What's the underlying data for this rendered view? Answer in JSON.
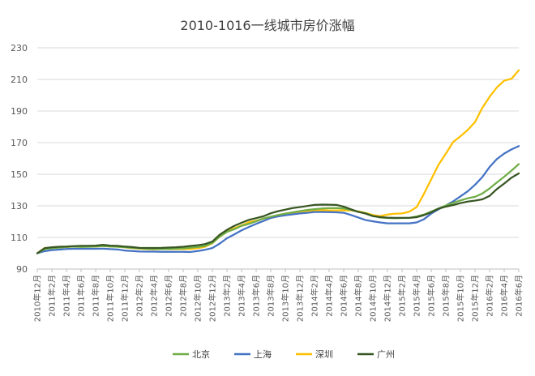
{
  "chart_data": {
    "type": "line",
    "title": "2010-1016一线城市房价涨幅",
    "ylim": [
      90,
      230
    ],
    "yticks": [
      90,
      110,
      130,
      150,
      170,
      190,
      210,
      230
    ],
    "grid": true,
    "legend_position": "bottom",
    "x": [
      "2010年12月",
      "2011年1月",
      "2011年2月",
      "2011年3月",
      "2011年4月",
      "2011年5月",
      "2011年6月",
      "2011年7月",
      "2011年8月",
      "2011年9月",
      "2011年10月",
      "2011年11月",
      "2011年12月",
      "2012年1月",
      "2012年2月",
      "2012年3月",
      "2012年4月",
      "2012年5月",
      "2012年6月",
      "2012年7月",
      "2012年8月",
      "2012年9月",
      "2012年10月",
      "2012年11月",
      "2012年12月",
      "2013年1月",
      "2013年2月",
      "2013年3月",
      "2013年4月",
      "2013年5月",
      "2013年6月",
      "2013年7月",
      "2013年8月",
      "2013年9月",
      "2013年10月",
      "2013年11月",
      "2013年12月",
      "2014年1月",
      "2014年2月",
      "2014年3月",
      "2014年4月",
      "2014年5月",
      "2014年6月",
      "2014年7月",
      "2014年8月",
      "2014年9月",
      "2014年10月",
      "2014年11月",
      "2014年12月",
      "2015年1月",
      "2015年2月",
      "2015年3月",
      "2015年4月",
      "2015年5月",
      "2015年6月",
      "2015年7月",
      "2015年8月",
      "2015年9月",
      "2015年10月",
      "2015年11月",
      "2015年12月",
      "2016年1月",
      "2016年2月",
      "2016年3月",
      "2016年4月",
      "2016年5月",
      "2016年6月"
    ],
    "x_tick_labels": [
      "2010年12月",
      "2011年2月",
      "2011年4月",
      "2011年6月",
      "2011年8月",
      "2011年10月",
      "2011年12月",
      "2012年2月",
      "2012年4月",
      "2012年6月",
      "2012年8月",
      "2012年10月",
      "2012年12月",
      "2013年2月",
      "2013年4月",
      "2013年6月",
      "2013年8月",
      "2013年10月",
      "2013年12月",
      "2014年2月",
      "2014年4月",
      "2014年6月",
      "2014年8月",
      "2014年10月",
      "2014年12月",
      "2015年2月",
      "2015年4月",
      "2015年6月",
      "2015年8月",
      "2015年10月",
      "2015年12月",
      "2016年2月",
      "2016年4月",
      "2016年6月"
    ],
    "series": [
      {
        "name": "北京",
        "color": "#70ad47",
        "values": [
          100,
          102.6,
          103.2,
          103.5,
          104,
          104.2,
          104,
          104.1,
          104.3,
          104.5,
          104.2,
          104.1,
          103.8,
          103.4,
          103.1,
          102.8,
          102.7,
          102.6,
          102.7,
          102.9,
          103.1,
          103.5,
          104,
          104.6,
          106.5,
          110.5,
          113.5,
          115.2,
          117.3,
          118.6,
          120.2,
          122,
          123.1,
          124.2,
          125.1,
          125.9,
          126.7,
          127.4,
          127.9,
          128.3,
          128.5,
          128.6,
          128.3,
          127.4,
          126.2,
          125.3,
          123.6,
          122.6,
          122.3,
          122.2,
          122.3,
          122.4,
          123.3,
          124.5,
          126.4,
          128.3,
          130.2,
          131.8,
          133.4,
          134.8,
          135.7,
          137.8,
          141,
          144.8,
          148.4,
          152.3,
          156.4
        ]
      },
      {
        "name": "上海",
        "color": "#4472c4",
        "values": [
          100,
          101.3,
          102,
          102.3,
          102.7,
          102.8,
          102.8,
          102.8,
          102.8,
          102.9,
          102.6,
          102.4,
          101.7,
          101.4,
          101.1,
          101,
          101,
          100.9,
          100.9,
          100.9,
          100.9,
          100.8,
          101.4,
          102.2,
          103.3,
          106.1,
          109.5,
          111.9,
          114.5,
          116.6,
          118.6,
          120.4,
          122.3,
          123.3,
          124,
          124.6,
          125.2,
          125.6,
          126.1,
          126.1,
          126,
          125.9,
          125.6,
          124.2,
          122.6,
          121,
          120.2,
          119.5,
          118.9,
          118.9,
          118.9,
          118.9,
          119.5,
          121.5,
          125.1,
          127.8,
          130.2,
          132.8,
          136,
          139.2,
          143.3,
          148.2,
          154.6,
          159.6,
          163.1,
          165.7,
          167.8
        ]
      },
      {
        "name": "深圳",
        "color": "#ffc000",
        "values": [
          100,
          103.3,
          103.6,
          103.8,
          104,
          104.2,
          104.2,
          104.2,
          104.2,
          104.6,
          104.3,
          104.1,
          103.7,
          103.2,
          102.9,
          102.6,
          102.5,
          102.6,
          102.6,
          102.6,
          102.6,
          102.7,
          103.2,
          104.1,
          106.3,
          110.5,
          113.7,
          115.8,
          117.6,
          119.6,
          120.6,
          121.9,
          123.1,
          124.1,
          125.1,
          125.6,
          126.3,
          126.8,
          126.8,
          127.3,
          127.1,
          127.1,
          127.2,
          127.1,
          126.5,
          125.5,
          124.2,
          123.5,
          124.5,
          125,
          125.2,
          126.3,
          129.2,
          137.6,
          146.8,
          156,
          163,
          170.4,
          174,
          178,
          183,
          192,
          199,
          205,
          209.2,
          210.4,
          215.8
        ]
      },
      {
        "name": "广州",
        "color": "#375623",
        "values": [
          100,
          103.2,
          103.8,
          104.1,
          104.2,
          104.5,
          104.7,
          104.7,
          104.8,
          105.3,
          104.8,
          104.7,
          104.2,
          103.9,
          103.4,
          103.3,
          103.3,
          103.4,
          103.6,
          103.8,
          104.1,
          104.6,
          105.1,
          105.8,
          107.4,
          111.7,
          114.8,
          117.3,
          119.3,
          121.1,
          122.2,
          123.4,
          125.3,
          126.6,
          127.6,
          128.6,
          129.2,
          129.9,
          130.6,
          130.8,
          130.7,
          130.6,
          129.5,
          127.8,
          126.2,
          125.1,
          123.5,
          122.9,
          122.5,
          122.4,
          122.4,
          122.4,
          122.8,
          124.1,
          125.9,
          128.2,
          129.5,
          130.5,
          131.7,
          132.7,
          133.3,
          134.1,
          136.3,
          140.6,
          144.1,
          147.8,
          150.5
        ]
      }
    ]
  }
}
